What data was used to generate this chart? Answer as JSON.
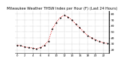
{
  "title": "Milwaukee Weather THSW Index per Hour (F) (Last 24 Hours)",
  "title_fontsize": 3.8,
  "background_color": "#ffffff",
  "plot_bg_color": "#ffffff",
  "line_color": "#dd0000",
  "marker_color": "#000000",
  "grid_color": "#888888",
  "hours": [
    0,
    1,
    2,
    3,
    4,
    5,
    6,
    7,
    8,
    9,
    10,
    11,
    12,
    13,
    14,
    15,
    16,
    17,
    18,
    19,
    20,
    21,
    22,
    23
  ],
  "values": [
    28,
    27,
    25,
    24,
    23,
    22,
    24,
    28,
    35,
    55,
    66,
    74,
    78,
    75,
    70,
    63,
    57,
    50,
    44,
    40,
    37,
    34,
    32,
    31
  ],
  "ylim": [
    15,
    85
  ],
  "yticks": [
    20,
    30,
    40,
    50,
    60,
    70,
    80
  ],
  "ytick_labels": [
    "20",
    "30",
    "40",
    "50",
    "60",
    "70",
    "80"
  ],
  "ytick_fontsize": 3.2,
  "xtick_fontsize": 2.8,
  "marker_size": 1.2,
  "line_width": 0.7
}
